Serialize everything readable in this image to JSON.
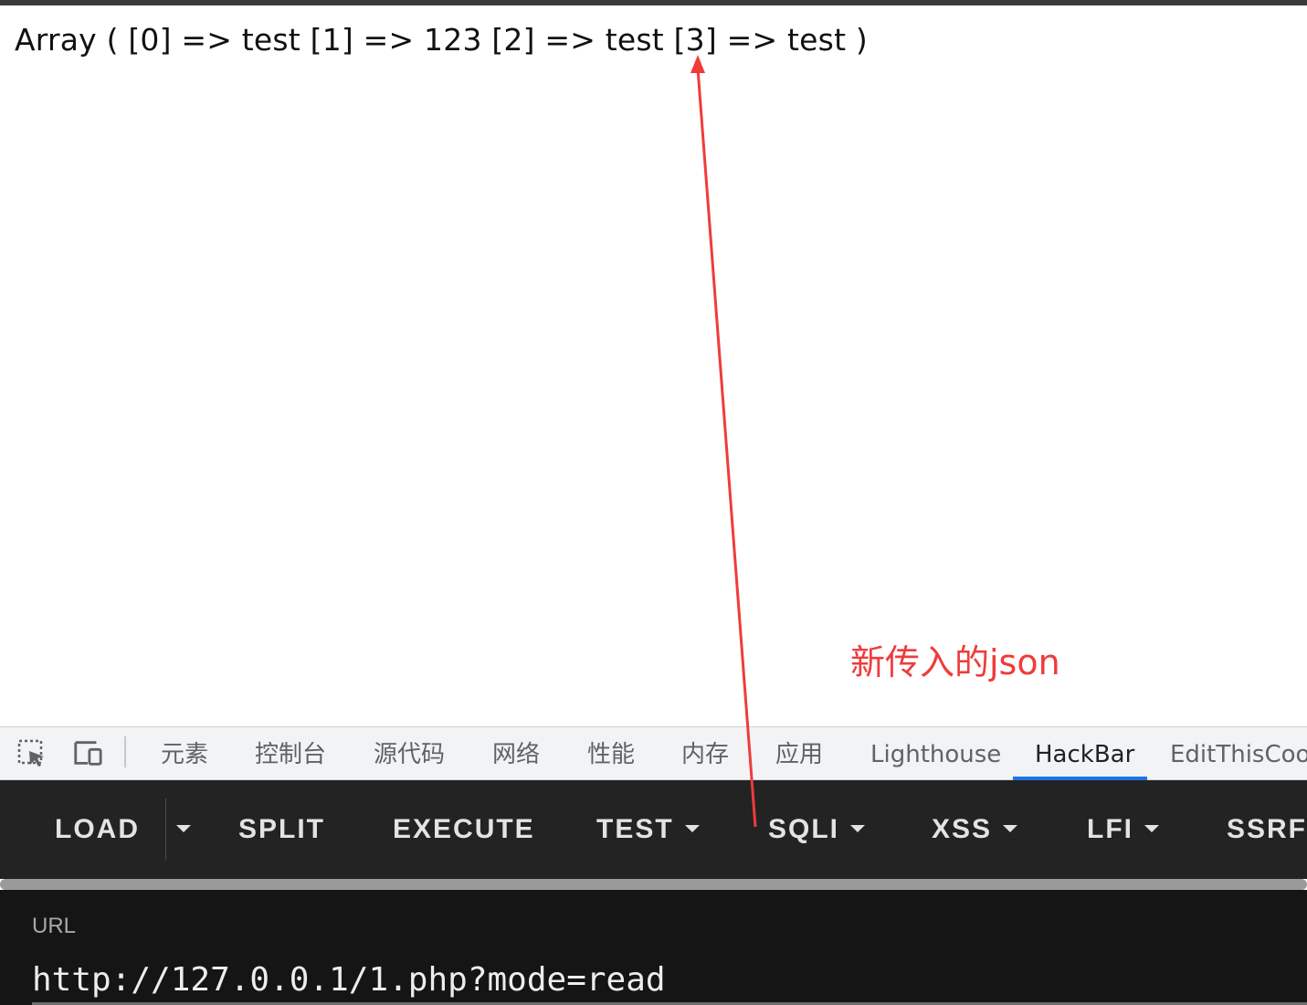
{
  "page": {
    "output_text": "Array ( [0] => test [1] => 123 [2] => test [3] => test )"
  },
  "annotation": {
    "text": "新传入的json",
    "color": "#f03b3b"
  },
  "devtools": {
    "tabs": [
      "元素",
      "控制台",
      "源代码",
      "网络",
      "性能",
      "内存",
      "应用",
      "Lighthouse",
      "HackBar",
      "EditThisCook"
    ],
    "active_tab": "HackBar",
    "icons": [
      "inspect-element-icon",
      "device-toolbar-icon"
    ],
    "accent_color": "#1a73e8"
  },
  "hackbar": {
    "buttons": {
      "load": "LOAD",
      "split": "SPLIT",
      "execute": "EXECUTE",
      "test": "TEST",
      "sqli": "SQLI",
      "xss": "XSS",
      "lfi": "LFI",
      "ssrf": "SSRF"
    },
    "url_label": "URL",
    "url_value": "http://127.0.0.1/1.php?mode=read"
  }
}
